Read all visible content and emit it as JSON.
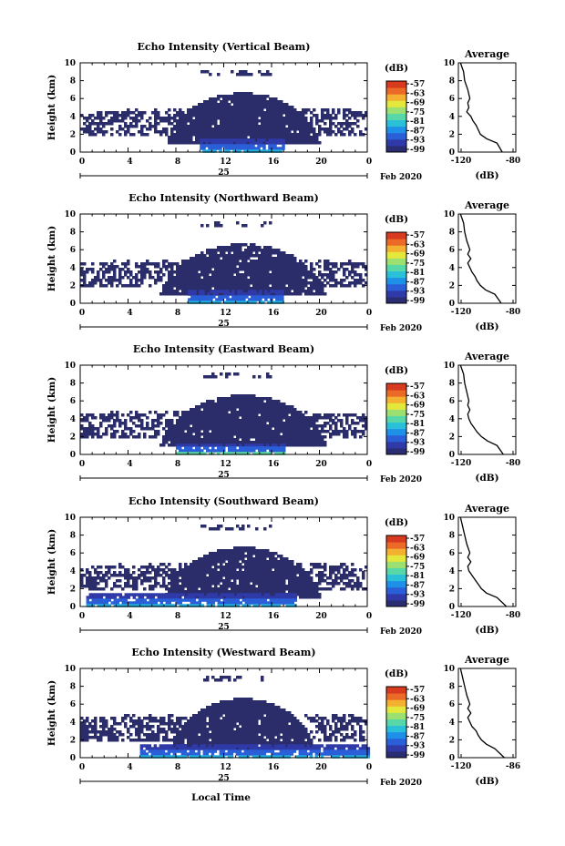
{
  "figure": {
    "date_label": "Feb 2020",
    "bottom_xlabel": "Local Time"
  },
  "colorbar": {
    "unit": "(dB)",
    "ticks": [
      "-57",
      "-63",
      "-69",
      "-75",
      "-81",
      "-87",
      "-93",
      "-99"
    ],
    "colors": [
      "#2a2d72",
      "#2f3aa8",
      "#2b5fd8",
      "#1f90e8",
      "#2ac0d8",
      "#58d8a8",
      "#9be070",
      "#e4e83c",
      "#f4b030",
      "#ec6a28",
      "#d83a20"
    ]
  },
  "colors": {
    "cloud": "#2b2d6b",
    "mid": "#2f3aa8",
    "low": "#2b5fd8",
    "cyan": "#20b0e0",
    "green": "#5ad8a0"
  },
  "chart_data": [
    {
      "type": "heatmap",
      "title": "Echo Intensity (Vertical Beam)",
      "xlabel": "",
      "ylabel": "Height (km)",
      "xticks": [
        "0",
        "4",
        "8",
        "12",
        "16",
        "20",
        "0"
      ],
      "yticks": [
        "0",
        "2",
        "4",
        "6",
        "8",
        "10"
      ],
      "xlim": [
        0,
        24
      ],
      "ylim": [
        0,
        10
      ],
      "day_label": "25",
      "side_profile": {
        "title": "Average",
        "xticks": [
          "-120",
          "-80"
        ],
        "xlabel": "(dB)",
        "xlim": [
          -130,
          -75
        ],
        "ylim": [
          0,
          10
        ],
        "x": [
          -128,
          -125,
          -124,
          -121,
          -119,
          -121,
          -120,
          -122,
          -118,
          -116,
          -113,
          -111,
          -109,
          -103,
          -93,
          -88
        ],
        "y": [
          10,
          9,
          8,
          7,
          6,
          5.5,
          5,
          4.5,
          4,
          3.5,
          3,
          2.5,
          2,
          1.5,
          1,
          0
        ]
      },
      "echo_regions": [
        {
          "intensity": -99,
          "x": [
            8.5,
            19.5
          ],
          "y": [
            1.5,
            6.8
          ]
        },
        {
          "intensity": -99,
          "x": [
            0,
            24
          ],
          "y": [
            2.0,
            4.5
          ]
        },
        {
          "intensity": -93,
          "x": [
            10,
            17
          ],
          "y": [
            0,
            1.5
          ]
        }
      ]
    },
    {
      "type": "heatmap",
      "title": "Echo Intensity (Northward Beam)",
      "xlabel": "",
      "ylabel": "Height (km)",
      "xticks": [
        "0",
        "4",
        "8",
        "12",
        "16",
        "20",
        "0"
      ],
      "yticks": [
        "0",
        "2",
        "4",
        "6",
        "8",
        "10"
      ],
      "xlim": [
        0,
        24
      ],
      "ylim": [
        0,
        10
      ],
      "day_label": "25",
      "side_profile": {
        "title": "Average",
        "xticks": [
          "-120",
          "-80"
        ],
        "xlabel": "(dB)",
        "xlim": [
          -130,
          -75
        ],
        "ylim": [
          0,
          10
        ],
        "x": [
          -128,
          -125,
          -124,
          -122,
          -119,
          -121,
          -118,
          -121,
          -119,
          -117,
          -114,
          -112,
          -109,
          -104,
          -95,
          -89
        ],
        "y": [
          10,
          9,
          8,
          7,
          6,
          5.5,
          5,
          4.5,
          4,
          3.5,
          3,
          2.5,
          2,
          1.5,
          1,
          0
        ]
      },
      "echo_regions": [
        {
          "intensity": -99,
          "x": [
            8.5,
            19.5
          ],
          "y": [
            1.5,
            6.8
          ]
        },
        {
          "intensity": -99,
          "x": [
            0,
            24
          ],
          "y": [
            2.5,
            4.5
          ]
        },
        {
          "intensity": -93,
          "x": [
            9,
            17
          ],
          "y": [
            0,
            1.5
          ]
        }
      ]
    },
    {
      "type": "heatmap",
      "title": "Echo Intensity (Eastward Beam)",
      "xlabel": "",
      "ylabel": "Height (km)",
      "xticks": [
        "0",
        "4",
        "8",
        "12",
        "16",
        "20",
        "0"
      ],
      "yticks": [
        "0",
        "2",
        "4",
        "6",
        "8",
        "10"
      ],
      "xlim": [
        0,
        24
      ],
      "ylim": [
        0,
        10
      ],
      "day_label": "25",
      "side_profile": {
        "title": "Average",
        "xticks": [
          "-120",
          "-80"
        ],
        "xlabel": "(dB)",
        "xlim": [
          -130,
          -75
        ],
        "ylim": [
          0,
          10
        ],
        "x": [
          -128,
          -125,
          -124,
          -122,
          -120,
          -121,
          -119,
          -121,
          -120,
          -118,
          -115,
          -112,
          -108,
          -102,
          -93,
          -87
        ],
        "y": [
          10,
          9,
          8,
          7,
          6,
          5.5,
          5,
          4.5,
          4,
          3.5,
          3,
          2.5,
          2,
          1.5,
          1,
          0
        ]
      },
      "echo_regions": [
        {
          "intensity": -99,
          "x": [
            8.5,
            19.5
          ],
          "y": [
            1.5,
            6.8
          ]
        },
        {
          "intensity": -99,
          "x": [
            0,
            24
          ],
          "y": [
            2.5,
            4.5
          ]
        },
        {
          "intensity": -87,
          "x": [
            8,
            17
          ],
          "y": [
            0,
            1.2
          ]
        }
      ]
    },
    {
      "type": "heatmap",
      "title": "Echo Intensity (Southward Beam)",
      "xlabel": "",
      "ylabel": "Height (km)",
      "xticks": [
        "0",
        "4",
        "8",
        "12",
        "16",
        "20",
        "0"
      ],
      "yticks": [
        "0",
        "2",
        "4",
        "6",
        "8",
        "10"
      ],
      "xlim": [
        0,
        24
      ],
      "ylim": [
        0,
        10
      ],
      "day_label": "25",
      "side_profile": {
        "title": "Average",
        "xticks": [
          "-120",
          "-80"
        ],
        "xlabel": "(dB)",
        "xlim": [
          -130,
          -75
        ],
        "ylim": [
          0,
          10
        ],
        "x": [
          -128,
          -126,
          -124,
          -122,
          -119,
          -121,
          -118,
          -121,
          -120,
          -117,
          -114,
          -111,
          -108,
          -103,
          -93,
          -84
        ],
        "y": [
          10,
          9,
          8,
          7,
          6,
          5.5,
          5,
          4.5,
          4,
          3.5,
          3,
          2.5,
          2,
          1.5,
          1,
          0
        ]
      },
      "echo_regions": [
        {
          "intensity": -99,
          "x": [
            8.5,
            19.5
          ],
          "y": [
            1.5,
            6.8
          ]
        },
        {
          "intensity": -99,
          "x": [
            0,
            24
          ],
          "y": [
            2.0,
            4.5
          ]
        },
        {
          "intensity": -93,
          "x": [
            0.5,
            18
          ],
          "y": [
            0,
            1.5
          ]
        }
      ]
    },
    {
      "type": "heatmap",
      "title": "Echo Intensity (Westward Beam)",
      "xlabel": "Local Time",
      "ylabel": "Height (km)",
      "xticks": [
        "0",
        "4",
        "8",
        "12",
        "16",
        "20",
        "0"
      ],
      "yticks": [
        "0",
        "2",
        "4",
        "6",
        "8",
        "10"
      ],
      "xlim": [
        0,
        24
      ],
      "ylim": [
        0,
        10
      ],
      "day_label": "25",
      "side_profile": {
        "title": "Average",
        "xticks": [
          "-120",
          "-86"
        ],
        "xlabel": "(dB)",
        "xlim": [
          -130,
          -75
        ],
        "ylim": [
          0,
          10
        ],
        "x": [
          -128,
          -126,
          -124,
          -122,
          -119,
          -121,
          -118,
          -121,
          -119,
          -117,
          -113,
          -111,
          -108,
          -103,
          -95,
          -86
        ],
        "y": [
          10,
          9,
          8,
          7,
          6,
          5.5,
          5,
          4.5,
          4,
          3.5,
          3,
          2.5,
          2,
          1.5,
          1,
          0
        ]
      },
      "echo_regions": [
        {
          "intensity": -99,
          "x": [
            8.5,
            19.5
          ],
          "y": [
            1.5,
            6.8
          ]
        },
        {
          "intensity": -99,
          "x": [
            0,
            24
          ],
          "y": [
            2.0,
            4.5
          ]
        },
        {
          "intensity": -93,
          "x": [
            5,
            24
          ],
          "y": [
            0,
            1.5
          ]
        }
      ]
    }
  ]
}
